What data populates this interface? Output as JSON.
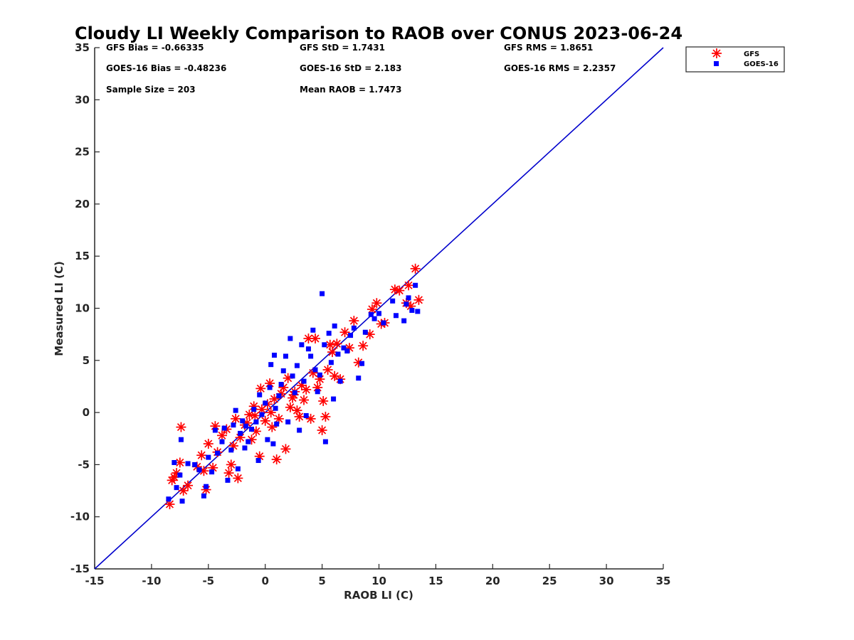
{
  "chart_data": {
    "type": "scatter",
    "title": "Cloudy LI Weekly Comparison to RAOB over CONUS 2023-06-24",
    "xlabel": "RAOB LI (C)",
    "ylabel": "Measured LI (C)",
    "xlim": [
      -15,
      35
    ],
    "ylim": [
      -15,
      35
    ],
    "xticks": [
      -15,
      -10,
      -5,
      0,
      5,
      10,
      15,
      20,
      25,
      30,
      35
    ],
    "yticks": [
      -15,
      -10,
      -5,
      0,
      5,
      10,
      15,
      20,
      25,
      30,
      35
    ],
    "grid": false,
    "legend_position": "outside-top-right",
    "reference_line": {
      "from": [
        -15,
        -15
      ],
      "to": [
        35,
        35
      ],
      "color": "#0000cc"
    },
    "stats": [
      [
        "GFS Bias = -0.66335",
        "GFS StD = 1.7431",
        "GFS RMS = 1.8651"
      ],
      [
        "GOES-16 Bias = -0.48236",
        "GOES-16 StD = 2.183",
        "GOES-16 RMS = 2.2357"
      ],
      [
        "Sample Size = 203",
        "Mean RAOB = 1.7473",
        ""
      ]
    ],
    "series": [
      {
        "name": "GFS",
        "marker": "asterisk",
        "color": "#ff0000",
        "points": [
          [
            -8.4,
            -8.8
          ],
          [
            -8.0,
            -6.2
          ],
          [
            -7.8,
            -5.8
          ],
          [
            -7.4,
            -1.4
          ],
          [
            -7.2,
            -7.5
          ],
          [
            -6.8,
            -7.0
          ],
          [
            -7.5,
            -4.8
          ],
          [
            -8.2,
            -6.5
          ],
          [
            -6.0,
            -5.2
          ],
          [
            -5.6,
            -4.1
          ],
          [
            -5.4,
            -5.6
          ],
          [
            -5.2,
            -7.4
          ],
          [
            -5.0,
            -3.0
          ],
          [
            -4.6,
            -5.3
          ],
          [
            -4.4,
            -1.3
          ],
          [
            -4.2,
            -3.8
          ],
          [
            -3.8,
            -2.2
          ],
          [
            -3.4,
            -1.6
          ],
          [
            -3.2,
            -5.8
          ],
          [
            -3.0,
            -5.0
          ],
          [
            -2.8,
            -3.2
          ],
          [
            -2.6,
            -0.6
          ],
          [
            -2.4,
            -6.3
          ],
          [
            -2.2,
            -2.4
          ],
          [
            -1.8,
            -1.2
          ],
          [
            -1.4,
            -0.2
          ],
          [
            -1.2,
            -2.6
          ],
          [
            -1.0,
            0.6
          ],
          [
            -0.8,
            -1.8
          ],
          [
            -0.5,
            -4.2
          ],
          [
            -0.4,
            2.3
          ],
          [
            -0.3,
            0.3
          ],
          [
            0.0,
            -0.8
          ],
          [
            0.2,
            0.8
          ],
          [
            0.4,
            2.8
          ],
          [
            0.6,
            -1.4
          ],
          [
            0.8,
            1.3
          ],
          [
            1.0,
            -4.5
          ],
          [
            1.2,
            -0.6
          ],
          [
            1.4,
            1.8
          ],
          [
            1.6,
            2.4
          ],
          [
            1.8,
            -3.5
          ],
          [
            2.0,
            3.3
          ],
          [
            2.2,
            0.5
          ],
          [
            2.4,
            1.4
          ],
          [
            2.6,
            2.0
          ],
          [
            2.8,
            0.2
          ],
          [
            3.0,
            -0.4
          ],
          [
            3.2,
            2.6
          ],
          [
            3.4,
            1.2
          ],
          [
            3.6,
            2.2
          ],
          [
            3.8,
            7.1
          ],
          [
            4.0,
            -0.6
          ],
          [
            4.2,
            3.8
          ],
          [
            4.4,
            7.1
          ],
          [
            4.6,
            2.4
          ],
          [
            4.8,
            3.2
          ],
          [
            5.0,
            -1.7
          ],
          [
            5.1,
            1.1
          ],
          [
            5.3,
            -0.4
          ],
          [
            5.5,
            4.1
          ],
          [
            5.7,
            6.5
          ],
          [
            5.9,
            5.8
          ],
          [
            6.1,
            3.5
          ],
          [
            6.3,
            6.6
          ],
          [
            6.6,
            3.2
          ],
          [
            7.0,
            7.7
          ],
          [
            7.4,
            6.2
          ],
          [
            7.8,
            8.8
          ],
          [
            8.2,
            4.8
          ],
          [
            8.6,
            6.4
          ],
          [
            9.2,
            7.5
          ],
          [
            9.4,
            9.9
          ],
          [
            9.8,
            10.5
          ],
          [
            10.2,
            8.5
          ],
          [
            10.5,
            8.6
          ],
          [
            11.4,
            11.8
          ],
          [
            11.8,
            11.7
          ],
          [
            12.4,
            10.5
          ],
          [
            12.6,
            12.2
          ],
          [
            12.8,
            10.2
          ],
          [
            13.2,
            13.8
          ],
          [
            13.5,
            10.8
          ],
          [
            -1.6,
            -1.0
          ],
          [
            -0.9,
            -0.3
          ],
          [
            0.5,
            0.0
          ],
          [
            2.5,
            1.7
          ]
        ]
      },
      {
        "name": "GOES-16",
        "marker": "square",
        "color": "#0000ff",
        "points": [
          [
            -8.5,
            -8.3
          ],
          [
            -8.0,
            -4.8
          ],
          [
            -7.8,
            -7.2
          ],
          [
            -7.5,
            -6.0
          ],
          [
            -7.4,
            -2.6
          ],
          [
            -7.3,
            -8.5
          ],
          [
            -6.8,
            -4.9
          ],
          [
            -6.2,
            -5.0
          ],
          [
            -5.8,
            -5.5
          ],
          [
            -5.4,
            -8.0
          ],
          [
            -5.2,
            -7.1
          ],
          [
            -5.0,
            -4.3
          ],
          [
            -4.7,
            -5.7
          ],
          [
            -4.4,
            -1.7
          ],
          [
            -4.2,
            -3.9
          ],
          [
            -3.8,
            -2.8
          ],
          [
            -3.6,
            -1.5
          ],
          [
            -3.3,
            -6.5
          ],
          [
            -3.0,
            -3.6
          ],
          [
            -2.8,
            -1.2
          ],
          [
            -2.6,
            0.2
          ],
          [
            -2.4,
            -5.4
          ],
          [
            -2.2,
            -2.0
          ],
          [
            -2.0,
            -0.8
          ],
          [
            -1.8,
            -3.4
          ],
          [
            -1.5,
            -2.8
          ],
          [
            -1.2,
            -1.6
          ],
          [
            -1.0,
            0.3
          ],
          [
            -0.8,
            -0.9
          ],
          [
            -0.6,
            -4.6
          ],
          [
            -0.5,
            1.7
          ],
          [
            -0.3,
            -0.2
          ],
          [
            0.0,
            0.9
          ],
          [
            0.2,
            -2.6
          ],
          [
            0.4,
            2.4
          ],
          [
            0.5,
            4.6
          ],
          [
            0.7,
            -3.0
          ],
          [
            0.8,
            5.5
          ],
          [
            1.0,
            -1.1
          ],
          [
            1.2,
            1.6
          ],
          [
            1.4,
            2.7
          ],
          [
            1.6,
            4.0
          ],
          [
            1.8,
            5.4
          ],
          [
            2.0,
            -0.9
          ],
          [
            2.2,
            7.1
          ],
          [
            2.4,
            3.5
          ],
          [
            2.6,
            1.9
          ],
          [
            2.8,
            4.5
          ],
          [
            3.0,
            -1.7
          ],
          [
            3.2,
            6.5
          ],
          [
            3.4,
            3.0
          ],
          [
            3.6,
            -0.3
          ],
          [
            3.8,
            6.1
          ],
          [
            4.0,
            5.4
          ],
          [
            4.2,
            7.9
          ],
          [
            4.4,
            4.1
          ],
          [
            4.6,
            2.0
          ],
          [
            4.8,
            3.6
          ],
          [
            5.0,
            11.4
          ],
          [
            5.2,
            6.5
          ],
          [
            5.3,
            -2.8
          ],
          [
            5.6,
            7.6
          ],
          [
            5.8,
            4.8
          ],
          [
            6.0,
            1.3
          ],
          [
            6.1,
            8.3
          ],
          [
            6.4,
            5.6
          ],
          [
            6.6,
            3.0
          ],
          [
            6.9,
            6.2
          ],
          [
            7.2,
            5.9
          ],
          [
            7.5,
            7.4
          ],
          [
            7.8,
            8.1
          ],
          [
            8.2,
            3.3
          ],
          [
            8.5,
            4.7
          ],
          [
            8.8,
            7.7
          ],
          [
            9.3,
            9.4
          ],
          [
            9.6,
            9.0
          ],
          [
            10.0,
            9.5
          ],
          [
            10.4,
            8.6
          ],
          [
            11.2,
            10.7
          ],
          [
            11.5,
            9.3
          ],
          [
            12.2,
            8.8
          ],
          [
            12.4,
            10.4
          ],
          [
            12.6,
            11.0
          ],
          [
            12.9,
            9.8
          ],
          [
            13.2,
            12.2
          ],
          [
            13.4,
            9.7
          ],
          [
            -1.7,
            -1.3
          ],
          [
            0.9,
            0.4
          ]
        ]
      }
    ]
  },
  "legend": {
    "items": [
      {
        "label": "GFS",
        "marker": "asterisk",
        "color": "#ff0000"
      },
      {
        "label": "GOES-16",
        "marker": "square",
        "color": "#0000ff"
      }
    ]
  },
  "colors": {
    "axis": "#262626",
    "reference_line": "#0000cc",
    "gfs": "#ff0000",
    "goes": "#0000ff"
  }
}
